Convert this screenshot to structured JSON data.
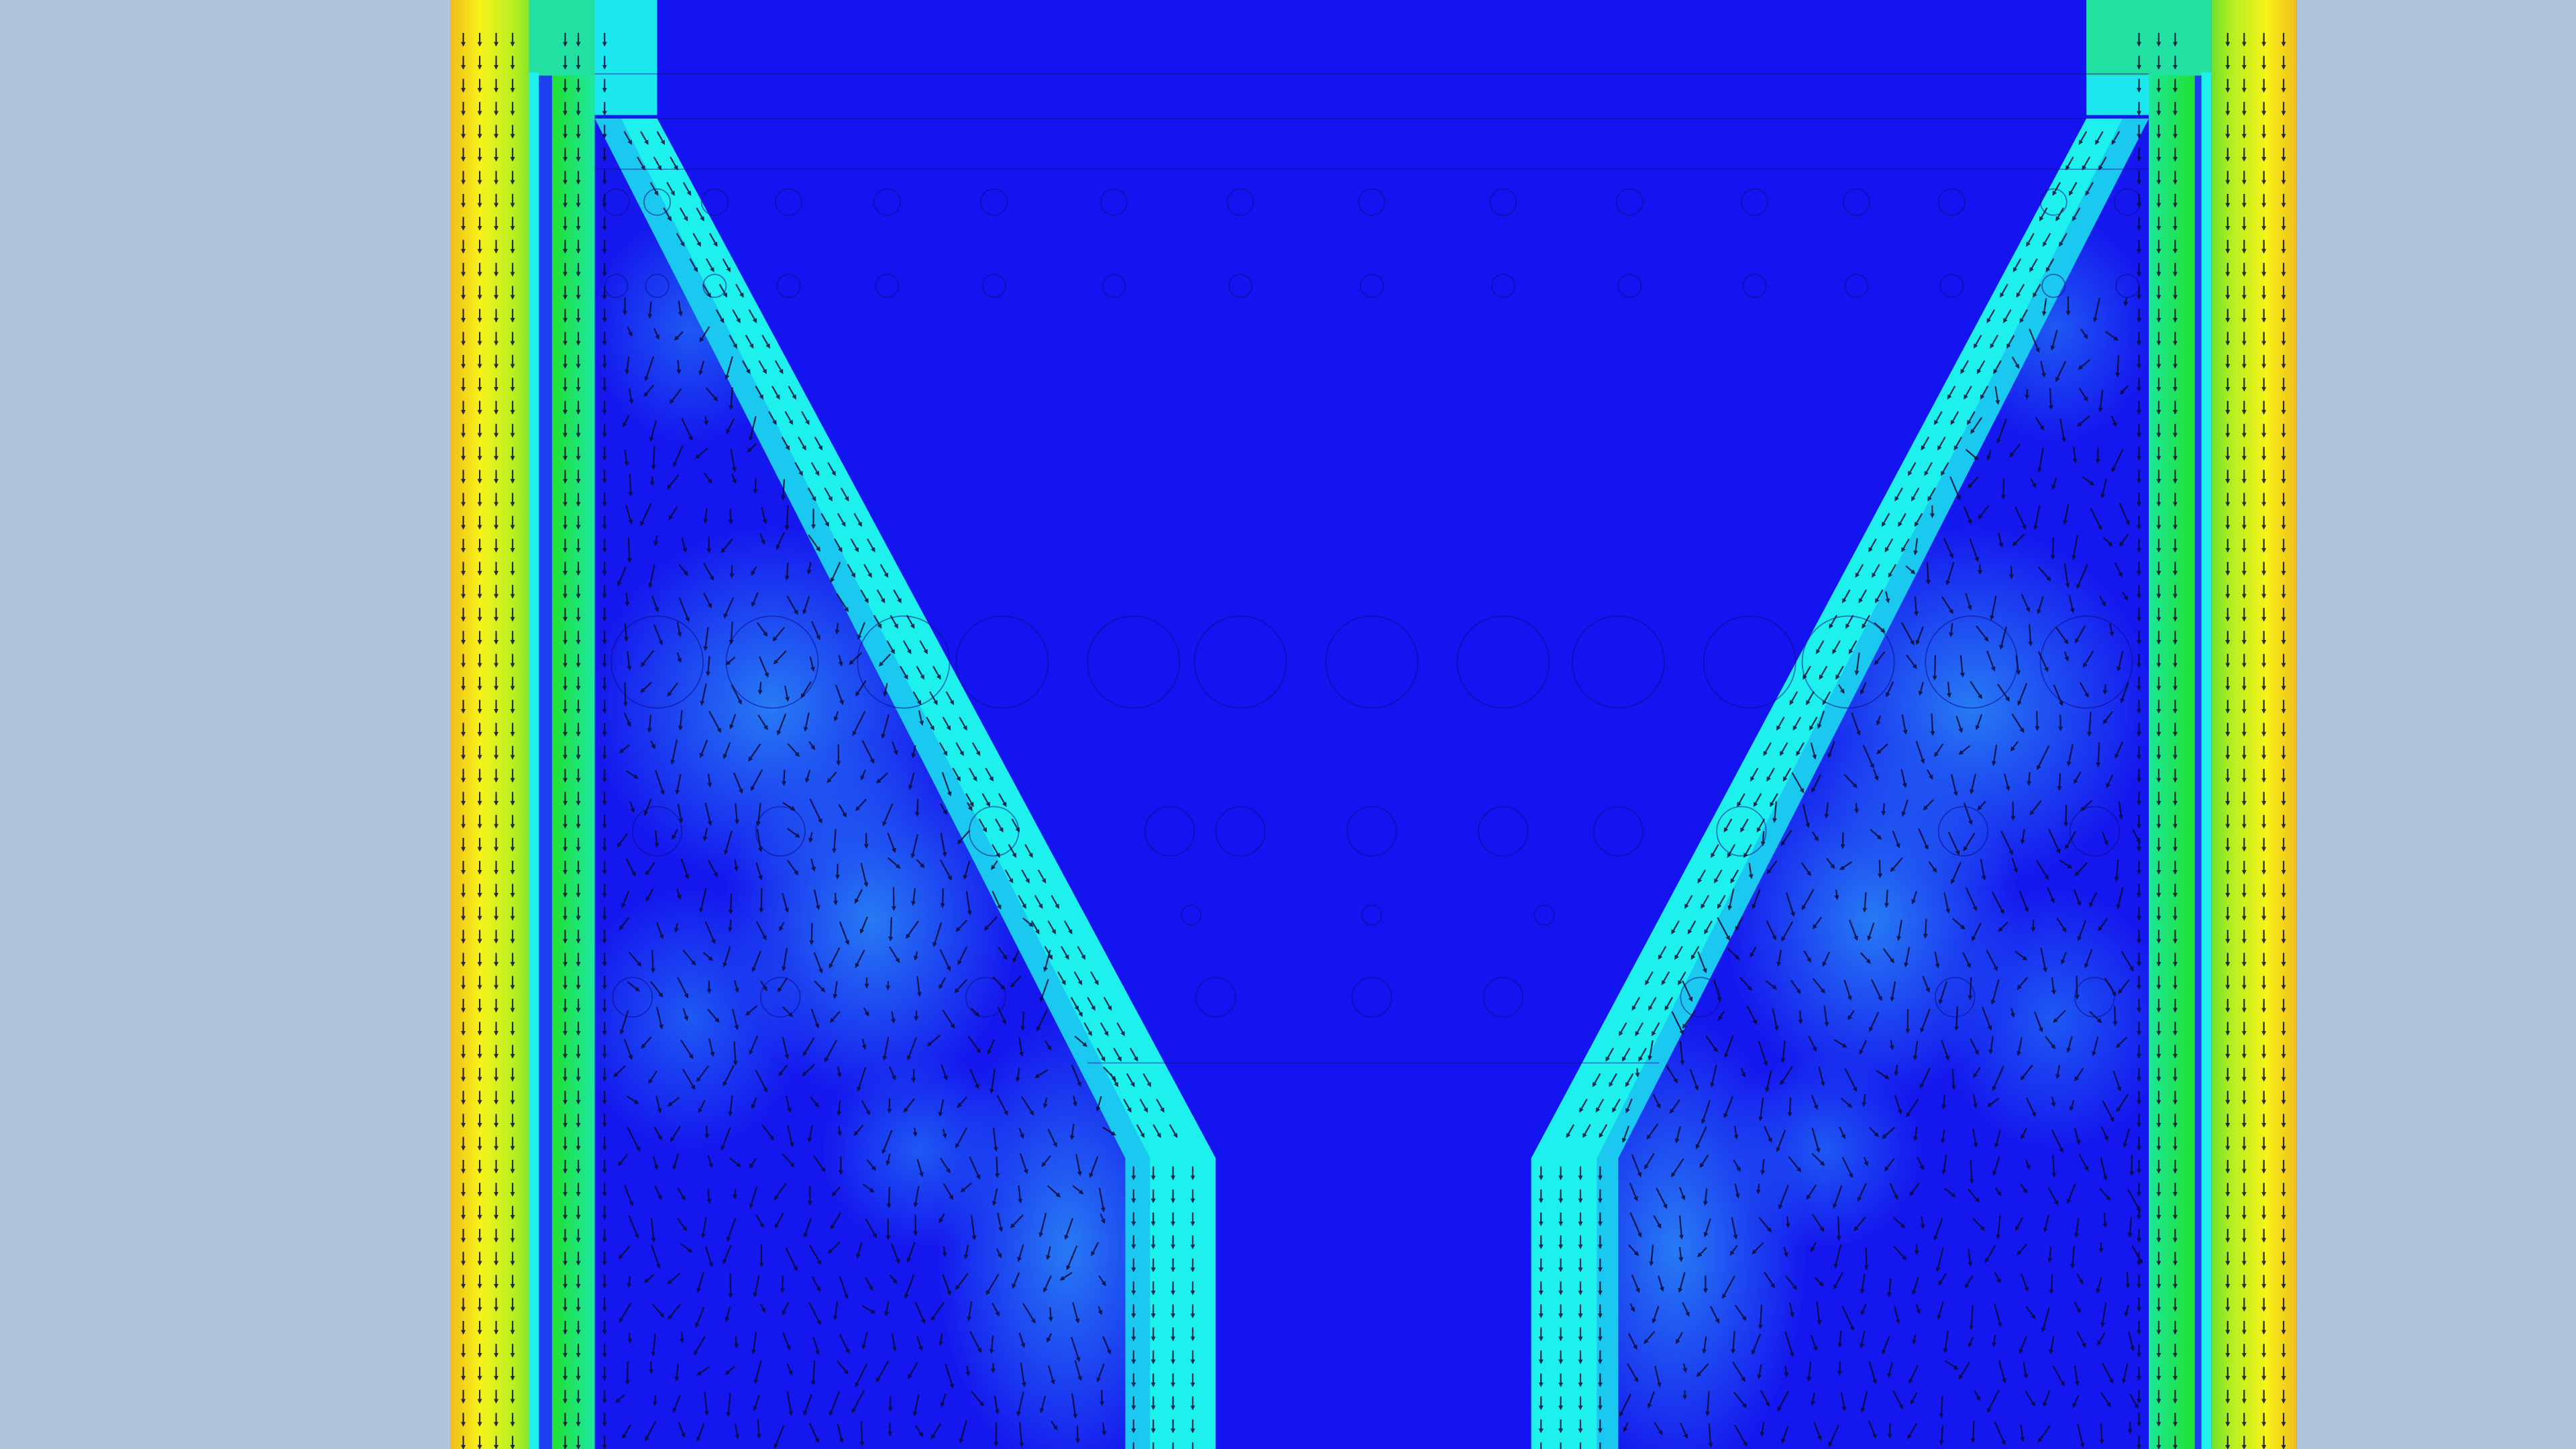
{
  "viewport": {
    "background": "#b0c4dc",
    "field_colors": {
      "min": "#1414f0",
      "low_mid": "#1f5cf5",
      "mid": "#1ce8f0",
      "mid_high": "#22e030",
      "high": "#f7f21a",
      "max": "#f0bc1a"
    },
    "vector_color": "#0a0a33",
    "outline_color": "#0b0b8a"
  }
}
